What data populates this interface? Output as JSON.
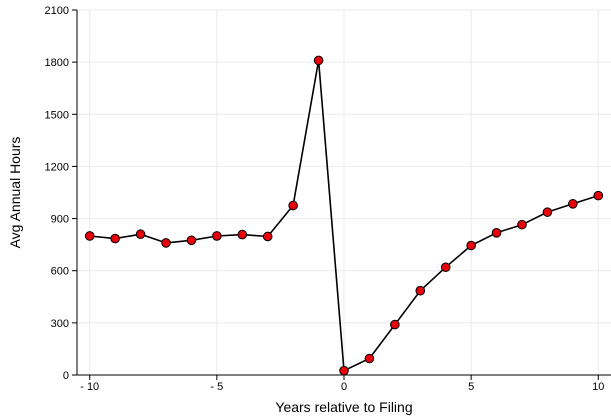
{
  "chart_data": {
    "type": "line",
    "title": "",
    "xlabel": "Years relative to Filing",
    "ylabel": "Avg Annual Hours",
    "xlim": [
      -10.5,
      10.5
    ],
    "ylim": [
      0,
      2100
    ],
    "xticks": [
      -10,
      -5,
      0,
      5,
      10
    ],
    "xtick_labels": [
      "- 10",
      "- 5",
      "0",
      "5",
      "10"
    ],
    "yticks": [
      0,
      300,
      600,
      900,
      1200,
      1500,
      1800,
      2100
    ],
    "ytick_labels": [
      "0",
      "300",
      "600",
      "900",
      "1200",
      "1500",
      "1800",
      "2100"
    ],
    "grid": true,
    "legend": "none",
    "colors": {
      "line": "#000000",
      "marker_fill": "#e8000b",
      "marker_edge": "#000000",
      "grid": "#ebebeb"
    },
    "series": [
      {
        "x": [
          -10,
          -9,
          -8,
          -7,
          -6,
          -5,
          -4,
          -3,
          -2,
          -1,
          0,
          1,
          2,
          3,
          4,
          5,
          6,
          7,
          8,
          9,
          10
        ],
        "y": [
          800,
          785,
          810,
          760,
          775,
          800,
          808,
          797,
          975,
          1810,
          25,
          95,
          290,
          485,
          620,
          745,
          818,
          865,
          937,
          985,
          1032
        ]
      }
    ]
  }
}
